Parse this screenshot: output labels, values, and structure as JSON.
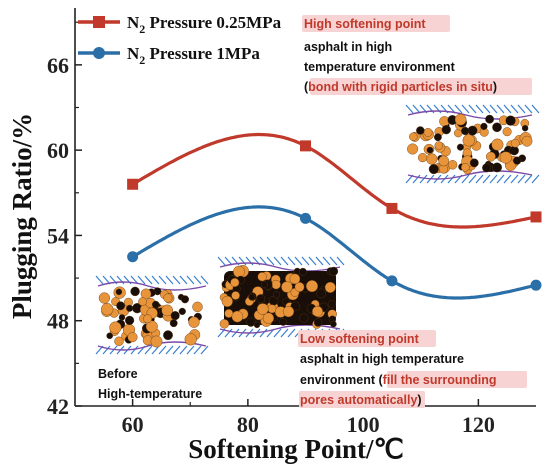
{
  "chart_data": {
    "type": "line",
    "xlabel": "Softening Point/℃",
    "ylabel": "Plugging Ratio/%",
    "xlim": [
      50,
      130
    ],
    "ylim": [
      42,
      70
    ],
    "xticks": [
      60,
      80,
      100,
      120
    ],
    "yticks": [
      42,
      48,
      54,
      60,
      66
    ],
    "x": [
      60,
      90,
      105,
      130
    ],
    "series": [
      {
        "name_prefix": "N",
        "name_sub": "2",
        "name_suffix": " Pressure 0.25MPa",
        "color": "#c0392b",
        "marker": "square",
        "values": [
          57.6,
          60.3,
          55.9,
          55.3
        ]
      },
      {
        "name_prefix": "N",
        "name_sub": "2",
        "name_suffix": " Pressure 1MPa",
        "color": "#2a6fa8",
        "marker": "circle",
        "values": [
          52.5,
          55.2,
          50.8,
          50.5
        ]
      }
    ],
    "grid": false,
    "legend": "top-left"
  },
  "annotations": {
    "high": {
      "line1_red": "High softening point",
      "line2": "asphalt in high",
      "line3": "temperature environment",
      "line4_pre": "(",
      "line4_red": "bond with rigid particles in situ",
      "line4_post": ")"
    },
    "low": {
      "line1_red": "Low softening point",
      "line2": "asphalt in high temperature",
      "line3_pre": "environment (",
      "line3_red": "fill the surrounding",
      "line4_red": "pores automatically",
      "line4_post": ")"
    },
    "before": {
      "line1": "Before",
      "line2": "High-temperature"
    }
  },
  "colors": {
    "particle_orange": "#e8943a",
    "asphalt_black": "#1a0e08",
    "pore_blue": "#3a7fd0",
    "pore_purple": "#7b4aa8"
  }
}
